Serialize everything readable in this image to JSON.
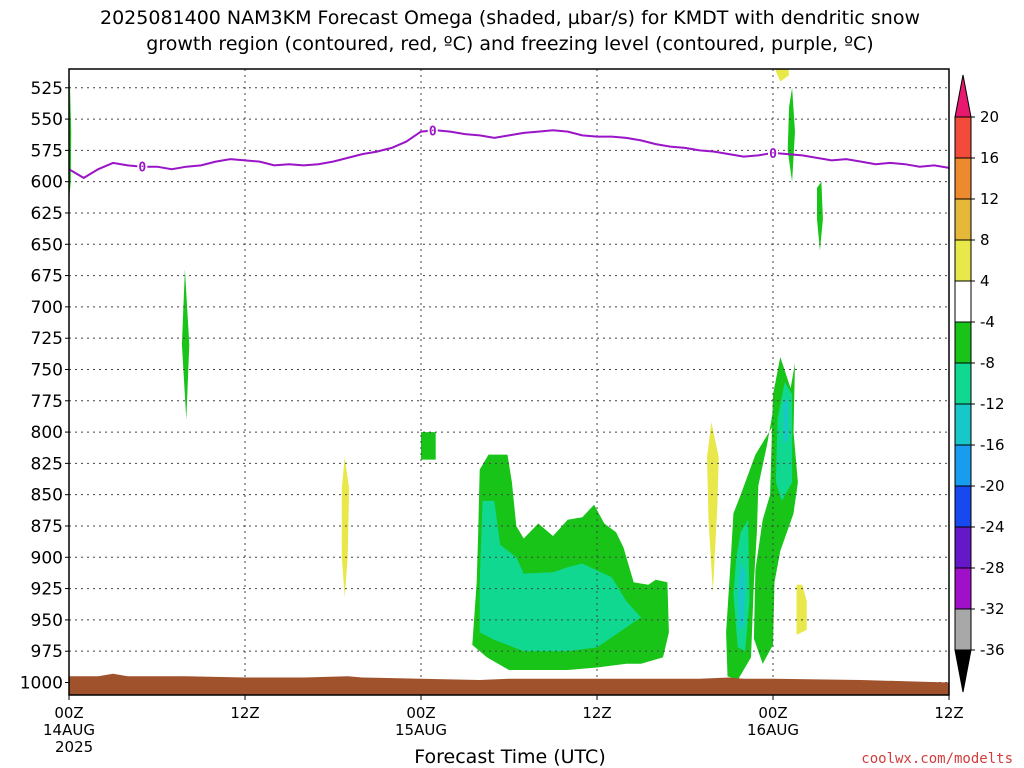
{
  "title": {
    "line1": "2025081400 NAM3KM Forecast Omega (shaded, µbar/s) for KMDT with dendritic snow",
    "line2": "growth region (contoured, red, ºC) and freezing level (contoured, purple, ºC)"
  },
  "credit": "coolwx.com/modelts",
  "chart_data": {
    "type": "heatmap",
    "title": "2025081400 NAM3KM Forecast Omega (shaded, µbar/s) for KMDT with dendritic snow growth region (contoured, red, ºC) and freezing level (contoured, purple, ºC)",
    "xlabel": "Forecast Time (UTC)",
    "ylabel": "",
    "x_range_hours": [
      0,
      60
    ],
    "y_range_mb": [
      510,
      1010
    ],
    "y_ticks": [
      525,
      550,
      575,
      600,
      625,
      650,
      675,
      700,
      725,
      750,
      775,
      800,
      825,
      850,
      875,
      900,
      925,
      950,
      975,
      1000
    ],
    "x_ticks": [
      {
        "hour": 0,
        "label": "00Z",
        "sub1": "14AUG",
        "sub2": "2025"
      },
      {
        "hour": 12,
        "label": "12Z",
        "sub1": "",
        "sub2": ""
      },
      {
        "hour": 24,
        "label": "00Z",
        "sub1": "15AUG",
        "sub2": ""
      },
      {
        "hour": 36,
        "label": "12Z",
        "sub1": "",
        "sub2": ""
      },
      {
        "hour": 48,
        "label": "00Z",
        "sub1": "16AUG",
        "sub2": ""
      },
      {
        "hour": 60,
        "label": "12Z",
        "sub1": "",
        "sub2": ""
      }
    ],
    "grid": true,
    "colorbar": {
      "levels": [
        "20",
        "16",
        "12",
        "8",
        "4",
        "-4",
        "-8",
        "-12",
        "-16",
        "-20",
        "-24",
        "-28",
        "-32",
        "-36"
      ],
      "colors": [
        "#e8186e",
        "#f24b3c",
        "#ee8a2e",
        "#e6b83a",
        "#e8e84a",
        "#ffffff",
        "#18c418",
        "#10d890",
        "#18c8c8",
        "#189cf0",
        "#1848f0",
        "#6418c8",
        "#a010c8",
        "#a8a8a8",
        "#000000"
      ]
    },
    "freezing_level": {
      "color": "#9a14c8",
      "label": "0",
      "label_hours": [
        5,
        24.8,
        48.0
      ],
      "points": [
        [
          0,
          590
        ],
        [
          1,
          597
        ],
        [
          2,
          590
        ],
        [
          3,
          585
        ],
        [
          4,
          587
        ],
        [
          5,
          588
        ],
        [
          6,
          588
        ],
        [
          7,
          590
        ],
        [
          8,
          588
        ],
        [
          9,
          587
        ],
        [
          10,
          584
        ],
        [
          11,
          582
        ],
        [
          12,
          583
        ],
        [
          13,
          584
        ],
        [
          14,
          587
        ],
        [
          15,
          586
        ],
        [
          16,
          587
        ],
        [
          17,
          586
        ],
        [
          18,
          584
        ],
        [
          19,
          581
        ],
        [
          20,
          578
        ],
        [
          21,
          576
        ],
        [
          22,
          573
        ],
        [
          23,
          568
        ],
        [
          24,
          560
        ],
        [
          25,
          559
        ],
        [
          26,
          560
        ],
        [
          27,
          562
        ],
        [
          28,
          563
        ],
        [
          29,
          565
        ],
        [
          30,
          563
        ],
        [
          31,
          561
        ],
        [
          32,
          560
        ],
        [
          33,
          559
        ],
        [
          34,
          560
        ],
        [
          35,
          563
        ],
        [
          36,
          564
        ],
        [
          37,
          564
        ],
        [
          38,
          565
        ],
        [
          39,
          567
        ],
        [
          40,
          570
        ],
        [
          41,
          572
        ],
        [
          42,
          573
        ],
        [
          43,
          575
        ],
        [
          44,
          576
        ],
        [
          45,
          578
        ],
        [
          46,
          580
        ],
        [
          47,
          579
        ],
        [
          48,
          577
        ],
        [
          49,
          578
        ],
        [
          50,
          579
        ],
        [
          51,
          581
        ],
        [
          52,
          583
        ],
        [
          53,
          582
        ],
        [
          54,
          584
        ],
        [
          55,
          586
        ],
        [
          56,
          585
        ],
        [
          57,
          586
        ],
        [
          58,
          588
        ],
        [
          59,
          587
        ],
        [
          60,
          589
        ]
      ]
    },
    "omega_regions": [
      {
        "value_bin": "-4 to -8",
        "color": "#18c418",
        "points": [
          [
            0.05,
            515
          ],
          [
            0.15,
            560
          ],
          [
            0.12,
            600
          ],
          [
            0.02,
            612
          ]
        ]
      },
      {
        "value_bin": "-4 to -8",
        "color": "#18c418",
        "points": [
          [
            7.9,
            670
          ],
          [
            8.2,
            730
          ],
          [
            8.0,
            790
          ],
          [
            7.7,
            730
          ]
        ]
      },
      {
        "value_bin": "-4 to -8",
        "color": "#18c418",
        "points": [
          [
            24.0,
            800
          ],
          [
            25.0,
            800
          ],
          [
            25.0,
            822
          ],
          [
            24.0,
            822
          ]
        ]
      },
      {
        "value_bin": "-4 to -8",
        "color": "#18c418",
        "points": [
          [
            28.0,
            830
          ],
          [
            28.6,
            818
          ],
          [
            29.9,
            818
          ],
          [
            30.2,
            840
          ],
          [
            30.5,
            875
          ],
          [
            31.0,
            885
          ],
          [
            32.0,
            873
          ],
          [
            33.0,
            883
          ],
          [
            34.0,
            870
          ],
          [
            35.0,
            868
          ],
          [
            35.8,
            858
          ],
          [
            36.5,
            873
          ],
          [
            37.3,
            880
          ],
          [
            37.8,
            892
          ],
          [
            38.5,
            920
          ],
          [
            39.5,
            922
          ],
          [
            40.0,
            918
          ],
          [
            40.8,
            920
          ],
          [
            40.9,
            960
          ],
          [
            40.5,
            980
          ],
          [
            39.0,
            985
          ],
          [
            38.0,
            985
          ],
          [
            36.0,
            988
          ],
          [
            34.0,
            990
          ],
          [
            30.0,
            990
          ],
          [
            28.5,
            980
          ],
          [
            27.5,
            970
          ],
          [
            27.8,
            920
          ],
          [
            27.9,
            880
          ]
        ]
      },
      {
        "value_bin": "-8 to -12",
        "color": "#10d890",
        "points": [
          [
            28.2,
            855
          ],
          [
            29.0,
            855
          ],
          [
            29.4,
            890
          ],
          [
            30.5,
            900
          ],
          [
            31.0,
            913
          ],
          [
            33.0,
            912
          ],
          [
            34.0,
            908
          ],
          [
            35.0,
            905
          ],
          [
            37.0,
            916
          ],
          [
            38.0,
            935
          ],
          [
            39.0,
            948
          ],
          [
            37.5,
            960
          ],
          [
            36.0,
            972
          ],
          [
            34.0,
            975
          ],
          [
            31.0,
            975
          ],
          [
            29.0,
            966
          ],
          [
            28.0,
            960
          ],
          [
            28.0,
            920
          ]
        ]
      },
      {
        "value_bin": "-4 to -8",
        "color": "#18c418",
        "points": [
          [
            45.8,
            850
          ],
          [
            46.8,
            818
          ],
          [
            48.0,
            795
          ],
          [
            48.1,
            776
          ],
          [
            47.6,
            810
          ],
          [
            47.0,
            843
          ],
          [
            46.9,
            880
          ],
          [
            46.7,
            920
          ],
          [
            46.5,
            980
          ],
          [
            45.6,
            998
          ],
          [
            44.9,
            995
          ],
          [
            44.8,
            960
          ],
          [
            45.1,
            905
          ],
          [
            45.3,
            865
          ]
        ]
      },
      {
        "value_bin": "-8 to -12",
        "color": "#10d890",
        "points": [
          [
            45.8,
            880
          ],
          [
            46.3,
            870
          ],
          [
            46.4,
            935
          ],
          [
            46.1,
            975
          ],
          [
            45.6,
            972
          ],
          [
            45.3,
            930
          ],
          [
            45.5,
            900
          ]
        ]
      },
      {
        "value_bin": "-12 to -16",
        "color": "#18c8c8",
        "points": [
          [
            45.8,
            905
          ],
          [
            46.1,
            912
          ],
          [
            46.0,
            955
          ],
          [
            45.7,
            958
          ],
          [
            45.6,
            930
          ]
        ]
      },
      {
        "value_bin": "-4 to -8",
        "color": "#18c418",
        "points": [
          [
            49.2,
            765
          ],
          [
            49.5,
            745
          ],
          [
            49.4,
            800
          ],
          [
            49.7,
            840
          ],
          [
            49.4,
            865
          ],
          [
            48.5,
            895
          ],
          [
            48.1,
            920
          ],
          [
            48.0,
            970
          ],
          [
            47.3,
            985
          ],
          [
            46.7,
            965
          ],
          [
            46.8,
            910
          ],
          [
            47.3,
            870
          ],
          [
            47.8,
            850
          ],
          [
            48.0,
            770
          ],
          [
            48.5,
            740
          ]
        ]
      },
      {
        "value_bin": "-8 to -12",
        "color": "#10d890",
        "points": [
          [
            48.3,
            790
          ],
          [
            48.8,
            760
          ],
          [
            49.3,
            770
          ],
          [
            49.3,
            840
          ],
          [
            48.6,
            855
          ],
          [
            48.2,
            840
          ]
        ]
      },
      {
        "value_bin": "-12 to -16",
        "color": "#18c8c8",
        "points": [
          [
            48.7,
            778
          ],
          [
            49.0,
            772
          ],
          [
            49.0,
            805
          ],
          [
            48.7,
            810
          ]
        ]
      },
      {
        "value_bin": "-4 to -8",
        "color": "#18c418",
        "points": [
          [
            49.1,
            540
          ],
          [
            49.3,
            525
          ],
          [
            49.5,
            560
          ],
          [
            49.3,
            600
          ],
          [
            49.0,
            575
          ]
        ]
      },
      {
        "value_bin": "-4 to -8",
        "color": "#18c418",
        "points": [
          [
            51.0,
            605
          ],
          [
            51.3,
            600
          ],
          [
            51.4,
            630
          ],
          [
            51.2,
            655
          ],
          [
            51.0,
            630
          ]
        ]
      },
      {
        "value_bin": "4 to 8",
        "color": "#e8e84a",
        "points": [
          [
            18.8,
            820
          ],
          [
            19.1,
            845
          ],
          [
            19.0,
            900
          ],
          [
            18.8,
            932
          ],
          [
            18.6,
            900
          ],
          [
            18.6,
            845
          ]
        ]
      },
      {
        "value_bin": "4 to 8",
        "color": "#e8e84a",
        "points": [
          [
            43.8,
            792
          ],
          [
            44.3,
            820
          ],
          [
            44.2,
            860
          ],
          [
            43.9,
            928
          ],
          [
            43.6,
            870
          ],
          [
            43.5,
            820
          ]
        ]
      },
      {
        "value_bin": "4 to 8",
        "color": "#e8e84a",
        "points": [
          [
            48.2,
            505
          ],
          [
            49.0,
            505
          ],
          [
            49.1,
            515
          ],
          [
            48.5,
            520
          ],
          [
            48.2,
            512
          ]
        ]
      },
      {
        "value_bin": "4 to 8",
        "color": "#e8e84a",
        "points": [
          [
            49.6,
            922
          ],
          [
            50.0,
            922
          ],
          [
            50.3,
            935
          ],
          [
            50.3,
            958
          ],
          [
            49.6,
            962
          ]
        ]
      }
    ],
    "terrain": {
      "color": "#a0522d",
      "top_points": [
        [
          0,
          995
        ],
        [
          2,
          995
        ],
        [
          3,
          993
        ],
        [
          4,
          995
        ],
        [
          8,
          995
        ],
        [
          12,
          996
        ],
        [
          16,
          996
        ],
        [
          19,
          995
        ],
        [
          20,
          996
        ],
        [
          24,
          997
        ],
        [
          28,
          998
        ],
        [
          30,
          997
        ],
        [
          38,
          997
        ],
        [
          43,
          997
        ],
        [
          45,
          996
        ],
        [
          46,
          997
        ],
        [
          48,
          997
        ],
        [
          54,
          998
        ],
        [
          60,
          1000
        ]
      ]
    }
  }
}
